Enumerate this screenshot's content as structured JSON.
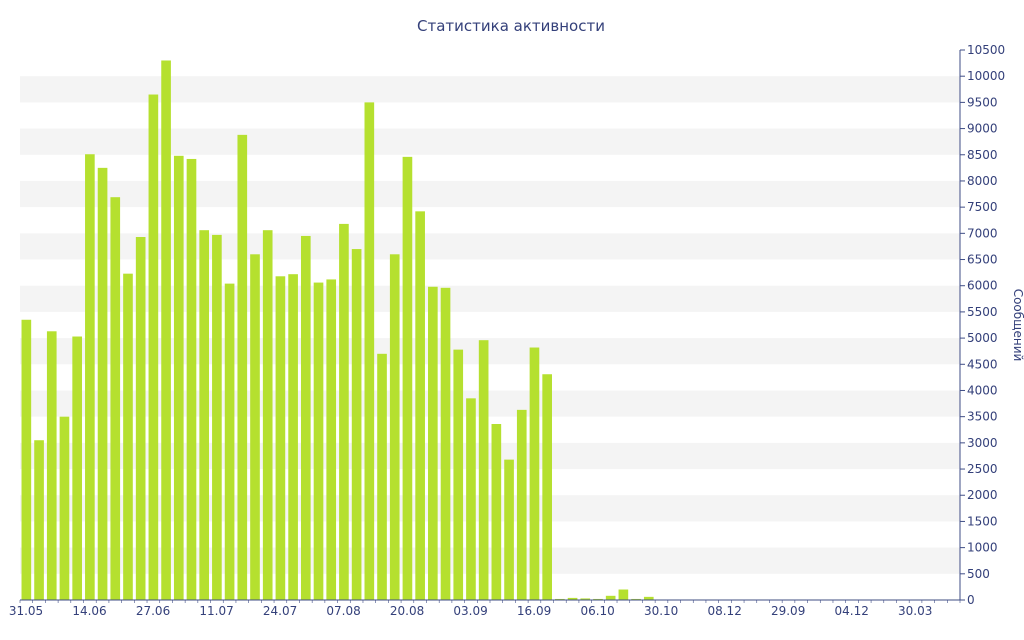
{
  "chart_data": {
    "type": "bar",
    "title": "Статистика активности",
    "ylabel": "Сообщений",
    "xlabel": "",
    "ylim": [
      0,
      10500
    ],
    "y_ticks": [
      0,
      500,
      1000,
      1500,
      2000,
      2500,
      3000,
      3500,
      4000,
      4500,
      5000,
      5500,
      6000,
      6500,
      7000,
      7500,
      8000,
      8500,
      9000,
      9500,
      10000,
      10500
    ],
    "y_axis_side": "right",
    "x_tick_labels": [
      "31.05",
      "14.06",
      "27.06",
      "11.07",
      "24.07",
      "07.08",
      "20.08",
      "03.09",
      "16.09",
      "06.10",
      "30.10",
      "08.12",
      "29.09",
      "04.12",
      "30.03"
    ],
    "grid": "alternating horizontal bands",
    "colors": {
      "bar": "#b5e02f",
      "band": "#f4f4f4",
      "text": "#34407a",
      "axis": "#3f4d86"
    },
    "values": [
      5350,
      3050,
      5130,
      3500,
      5030,
      8510,
      8250,
      7690,
      6230,
      6930,
      9650,
      10300,
      8480,
      8420,
      7060,
      6970,
      6040,
      8880,
      6600,
      7060,
      6180,
      6220,
      6950,
      6060,
      6120,
      7180,
      6700,
      9500,
      4700,
      6600,
      8460,
      7420,
      5980,
      5960,
      4780,
      3850,
      4960,
      3360,
      2680,
      3630,
      4820,
      4310,
      20,
      40,
      30,
      20,
      80,
      200,
      20,
      60,
      10,
      10,
      10,
      10,
      10,
      10,
      10,
      10,
      10,
      10,
      10,
      10,
      10,
      10,
      10,
      10,
      10,
      10,
      10,
      10,
      10,
      10,
      10,
      10
    ]
  }
}
